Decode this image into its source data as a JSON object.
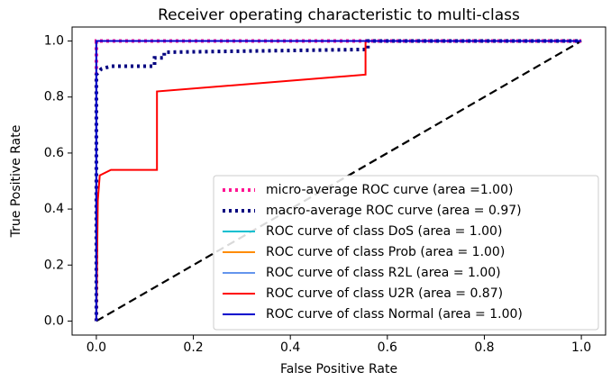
{
  "chart_data": {
    "type": "line",
    "title": "Receiver operating characteristic to multi-class",
    "xlabel": "False Positive Rate",
    "ylabel": "True Positive Rate",
    "xlim": [
      -0.05,
      1.05
    ],
    "ylim": [
      -0.05,
      1.05
    ],
    "xticks": [
      {
        "value": 0,
        "label": "0.0"
      },
      0.2,
      0.4,
      0.6,
      0.8,
      {
        "value": 1,
        "label": "1.0"
      }
    ],
    "yticks": [
      {
        "value": 0,
        "label": "0.0"
      },
      0.2,
      0.4,
      0.6,
      0.8,
      {
        "value": 1,
        "label": "1.0"
      }
    ],
    "legend": "lower right",
    "series": [
      {
        "name": "micro-average ROC curve (area =1.00)",
        "color": "#ff1493",
        "style": "dotted",
        "x": [
          0,
          0,
          0.01,
          1
        ],
        "y": [
          0,
          1,
          1,
          1
        ]
      },
      {
        "name": "macro-average ROC curve (area = 0.97)",
        "color": "#000080",
        "style": "dotted",
        "x": [
          0,
          0,
          0.01,
          0.03,
          0.12,
          0.12,
          0.14,
          0.14,
          0.56,
          0.56,
          1
        ],
        "y": [
          0,
          0.88,
          0.9,
          0.91,
          0.91,
          0.94,
          0.94,
          0.96,
          0.97,
          1,
          1
        ]
      },
      {
        "name": "ROC curve of class DoS (area = 1.00)",
        "color": "#00bfd0",
        "style": "solid",
        "x": [
          0,
          0,
          1
        ],
        "y": [
          0,
          1,
          1
        ]
      },
      {
        "name": "ROC curve of class Prob (area = 1.00)",
        "color": "#ff8c00",
        "style": "solid",
        "x": [
          0,
          0,
          1
        ],
        "y": [
          0,
          1,
          1
        ]
      },
      {
        "name": "ROC curve of class R2L (area = 1.00)",
        "color": "#6495ed",
        "style": "solid",
        "x": [
          0,
          0,
          1
        ],
        "y": [
          0,
          1,
          1
        ]
      },
      {
        "name": "ROC curve of class U2R (area = 0.87)",
        "color": "#ff0000",
        "style": "solid",
        "x": [
          0,
          0.003,
          0.007,
          0.03,
          0.125,
          0.125,
          0.555,
          0.555,
          1
        ],
        "y": [
          0,
          0.43,
          0.52,
          0.54,
          0.54,
          0.82,
          0.88,
          1,
          1
        ]
      },
      {
        "name": "ROC curve of class Normal (area = 1.00)",
        "color": "#0000cd",
        "style": "solid",
        "x": [
          0,
          0,
          1
        ],
        "y": [
          0,
          1,
          1
        ]
      }
    ],
    "reference_line": {
      "x": [
        0,
        1
      ],
      "y": [
        0,
        1
      ],
      "color": "#000000",
      "style": "dashed"
    }
  }
}
